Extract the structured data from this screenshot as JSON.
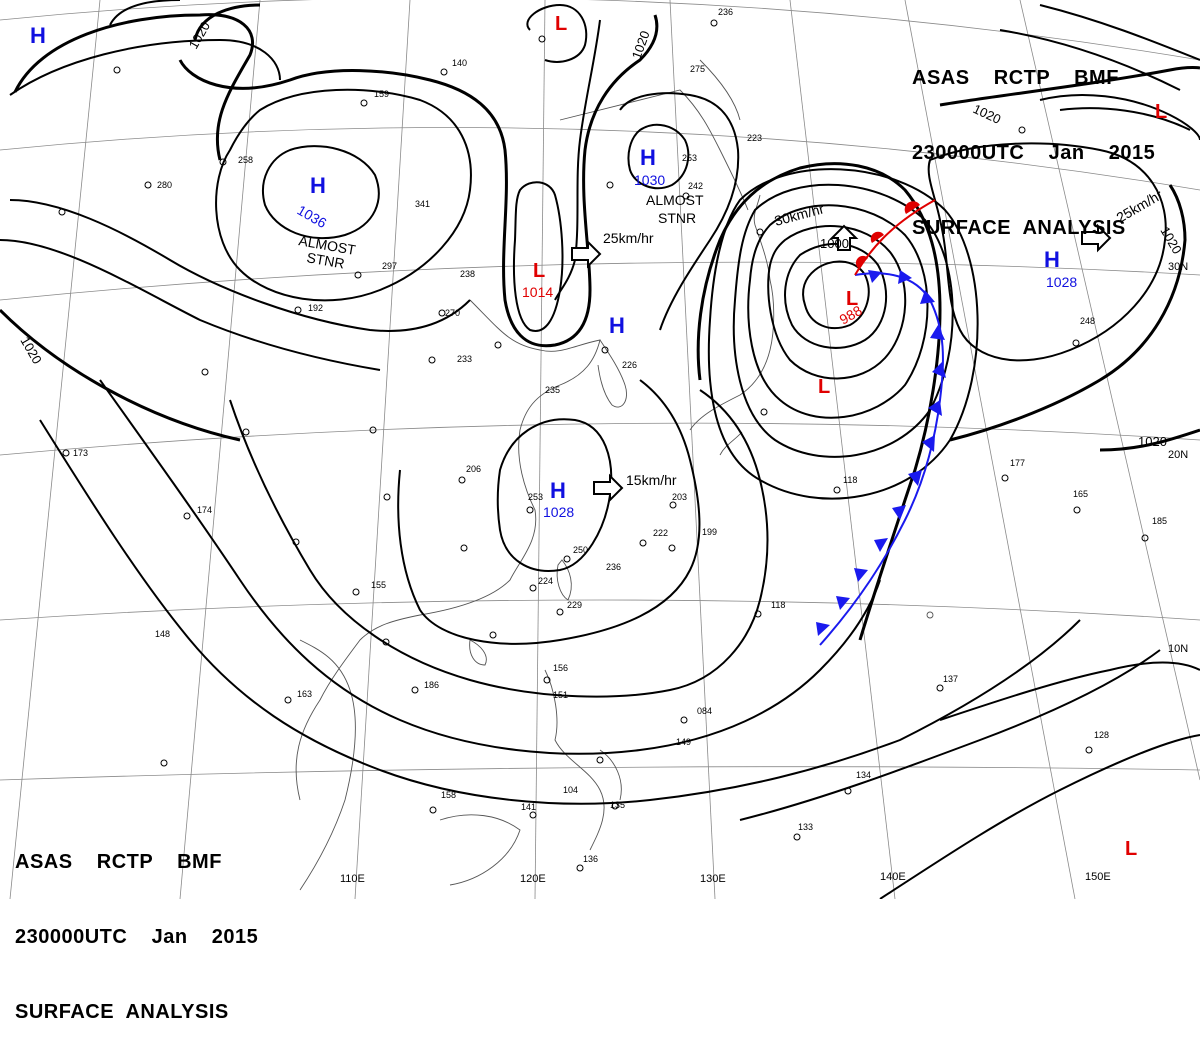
{
  "header": {
    "title_line1": "ASAS    RCTP    BMF",
    "title_line2": "230000UTC    Jan    2015",
    "title_line3": "SURFACE  ANALYSIS"
  },
  "footer": {
    "title_line1": "ASAS    RCTP    BMF",
    "title_line2": "230000UTC    Jan    2015",
    "title_line3": "SURFACE  ANALYSIS"
  },
  "colors": {
    "high": "#1010e0",
    "low": "#e00000",
    "isobar": "#000000",
    "grid": "#888888",
    "coast": "#555555",
    "warm_front": "#e00000",
    "cold_front": "#1a1aee"
  },
  "pressure_systems": [
    {
      "id": "h1",
      "type": "H",
      "letter": "H",
      "value": ""
    },
    {
      "id": "h2",
      "type": "H",
      "letter": "H",
      "value": "1036"
    },
    {
      "id": "h3",
      "type": "H",
      "letter": "H",
      "value": "1030"
    },
    {
      "id": "h4",
      "type": "H",
      "letter": "H",
      "value": ""
    },
    {
      "id": "h5",
      "type": "H",
      "letter": "H",
      "value": "1028"
    },
    {
      "id": "h6",
      "type": "H",
      "letter": "H",
      "value": "1028"
    },
    {
      "id": "l1",
      "type": "L",
      "letter": "L",
      "value": ""
    },
    {
      "id": "l2",
      "type": "L",
      "letter": "L",
      "value": "1014"
    },
    {
      "id": "l3",
      "type": "L",
      "letter": "L",
      "value": "988"
    },
    {
      "id": "l4",
      "type": "L",
      "letter": "L",
      "value": ""
    },
    {
      "id": "l5",
      "type": "L",
      "letter": "L",
      "value": ""
    },
    {
      "id": "l6",
      "type": "L",
      "letter": "L",
      "value": ""
    }
  ],
  "isobar_labels": [
    "1020",
    "1020",
    "1020",
    "1020",
    "1020",
    "1020",
    "1000"
  ],
  "annotations": {
    "almost_stnr_1": [
      "ALMOST",
      "STNR"
    ],
    "almost_stnr_2": [
      "ALMOST",
      "STNR"
    ],
    "motion_1": "25km/hr",
    "motion_2": "15km/hr",
    "motion_3": "30km/hr",
    "motion_4": "25km/hr"
  },
  "longitude_labels": [
    "110E",
    "120E",
    "130E",
    "140E",
    "150E"
  ],
  "latitude_labels": [
    "10N",
    "20N",
    "30N"
  ],
  "station_values": [
    "236",
    "140",
    "275",
    "159",
    "253",
    "223",
    "242",
    "258",
    "280",
    "341",
    "297",
    "238",
    "270",
    "192",
    "233",
    "235",
    "226",
    "173",
    "206",
    "174",
    "253",
    "203",
    "199",
    "222",
    "250",
    "236",
    "224",
    "229",
    "155",
    "148",
    "186",
    "163",
    "156",
    "151",
    "084",
    "149",
    "158",
    "141",
    "104",
    "135",
    "136",
    "133",
    "134",
    "137",
    "128",
    "177",
    "165",
    "185",
    "118",
    "118",
    "248"
  ]
}
